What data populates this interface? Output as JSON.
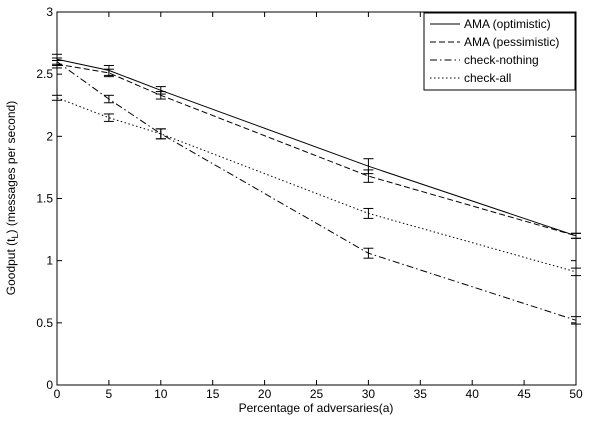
{
  "chart_data": {
    "type": "line",
    "xlabel": "Percentage of adversaries",
    "xlabel_suffix": "(a)",
    "ylabel": "Goodput (t",
    "ylabel_sub": "L",
    "ylabel_tail": ") (messages per second)",
    "xlim": [
      0,
      50
    ],
    "ylim": [
      0,
      3
    ],
    "xticks": [
      0,
      5,
      10,
      15,
      20,
      25,
      30,
      35,
      40,
      45,
      50
    ],
    "yticks": [
      0,
      0.5,
      1,
      1.5,
      2,
      2.5,
      3
    ],
    "ytick_labels": [
      "0",
      "0.5",
      "1",
      "1.5",
      "2",
      "2.5",
      "3"
    ],
    "grid": false,
    "legend_position": "top-right",
    "x": [
      0,
      5,
      10,
      30,
      50
    ],
    "series": [
      {
        "name": "AMA (optimistic)",
        "dash": "solid",
        "values": [
          2.62,
          2.53,
          2.37,
          1.76,
          1.2
        ],
        "err": [
          0.04,
          0.04,
          0.03,
          0.06,
          0.02
        ]
      },
      {
        "name": "AMA (pessimistic)",
        "dash": "dashed",
        "values": [
          2.58,
          2.51,
          2.33,
          1.68,
          1.2
        ],
        "err": [
          0.03,
          0.03,
          0.03,
          0.05,
          0.02
        ]
      },
      {
        "name": "check-nothing",
        "dash": "dashdot",
        "values": [
          2.6,
          2.3,
          2.02,
          1.06,
          0.52
        ],
        "err": [
          0.03,
          0.03,
          0.04,
          0.04,
          0.03
        ]
      },
      {
        "name": "check-all",
        "dash": "dotted",
        "values": [
          2.31,
          2.15,
          2.02,
          1.38,
          0.91
        ],
        "err": [
          0.02,
          0.03,
          0.04,
          0.04,
          0.03
        ]
      }
    ]
  }
}
